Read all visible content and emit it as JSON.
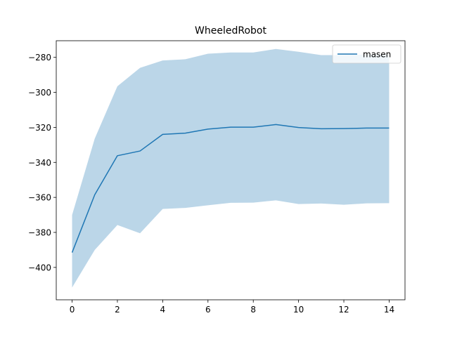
{
  "chart_data": {
    "type": "line",
    "title": "WheeledRobot",
    "xlabel": "",
    "ylabel": "",
    "xlim": [
      -0.7,
      14.7
    ],
    "ylim": [
      -418.5,
      -270.5
    ],
    "x_ticks": [
      0,
      2,
      4,
      6,
      8,
      10,
      12,
      14
    ],
    "y_ticks": [
      -400,
      -380,
      -360,
      -340,
      -320,
      -300,
      -280
    ],
    "grid": false,
    "legend_position": "top-right",
    "x": [
      0,
      1,
      2,
      3,
      4,
      5,
      6,
      7,
      8,
      9,
      10,
      11,
      12,
      13,
      14
    ],
    "series": [
      {
        "name": "masen",
        "color": "#1f77b4",
        "band_color": "#1f77b4",
        "band_opacity": 0.3,
        "values": [
          -391.5,
          -358.5,
          -336.2,
          -333.5,
          -324.0,
          -323.3,
          -321.0,
          -319.9,
          -319.9,
          -318.4,
          -320.1,
          -320.8,
          -320.7,
          -320.4,
          -320.4
        ],
        "upper": [
          -370.0,
          -326.4,
          -296.5,
          -286.0,
          -281.8,
          -281.1,
          -277.9,
          -277.2,
          -277.2,
          -275.2,
          -276.8,
          -278.7,
          -278.7,
          -278.4,
          -278.4
        ],
        "lower": [
          -411.5,
          -390.0,
          -375.8,
          -380.5,
          -366.6,
          -366.0,
          -364.5,
          -363.1,
          -363.0,
          -361.7,
          -363.8,
          -363.5,
          -364.2,
          -363.4,
          -363.3
        ]
      }
    ]
  }
}
